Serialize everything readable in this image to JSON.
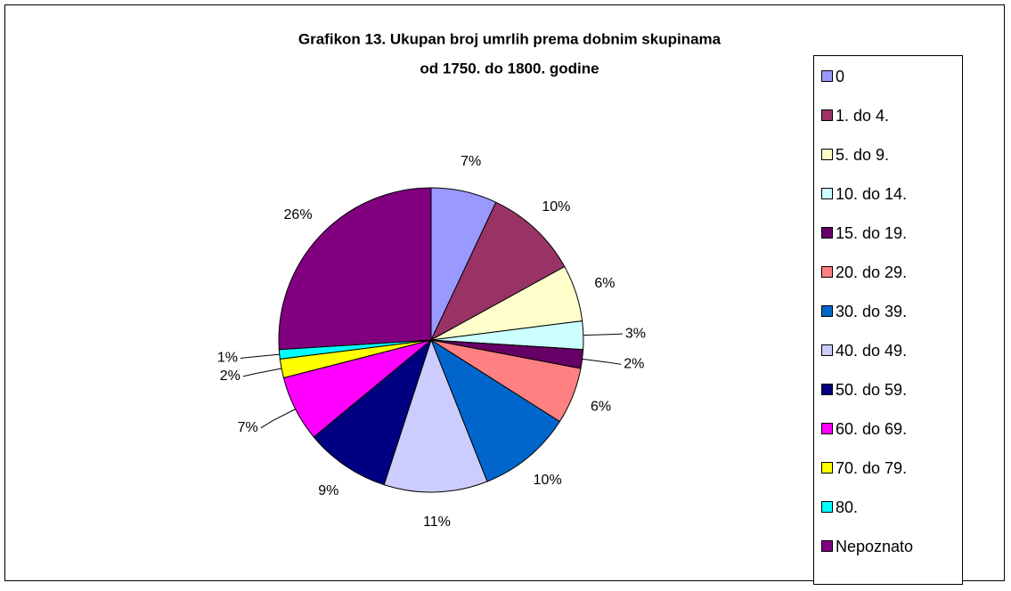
{
  "chart_data": {
    "type": "pie",
    "title": "Grafikon 13. Ukupan broj umrlih prema dobnim skupinama",
    "subtitle": "od 1750. do 1800. godine",
    "categories": [
      "0",
      "1. do 4.",
      "5. do 9.",
      "10. do 14.",
      "15. do 19.",
      "20. do 29.",
      "30. do 39.",
      "40. do 49.",
      "50. do 59.",
      "60. do 69.",
      "70. do 79.",
      "80.",
      "Nepoznato"
    ],
    "values": [
      7,
      10,
      6,
      3,
      2,
      6,
      10,
      11,
      9,
      7,
      2,
      1,
      26
    ],
    "value_labels": [
      "7%",
      "10%",
      "6%",
      "3%",
      "2%",
      "6%",
      "10%",
      "11%",
      "9%",
      "7%",
      "2%",
      "1%",
      "26%"
    ],
    "colors": [
      "#9999ff",
      "#993366",
      "#ffffcc",
      "#ccffff",
      "#660066",
      "#ff8080",
      "#0066cc",
      "#ccccff",
      "#000080",
      "#ff00ff",
      "#ffff00",
      "#00ffff",
      "#800080"
    ],
    "legend": "right"
  }
}
